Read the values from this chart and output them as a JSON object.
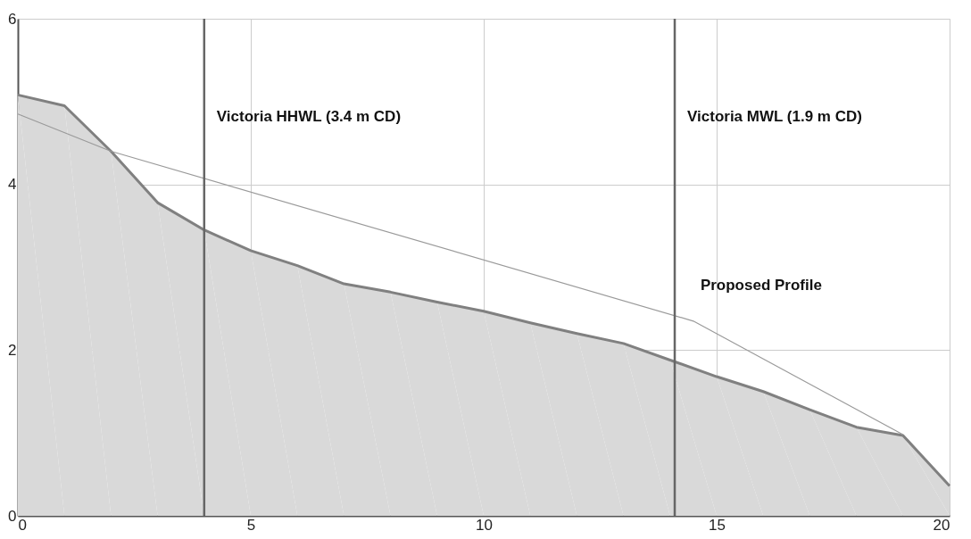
{
  "chart_data": {
    "type": "area",
    "x": [
      0,
      1,
      2,
      3,
      4,
      5,
      6,
      7,
      8,
      9,
      10,
      11,
      12,
      13,
      14,
      15,
      16,
      17,
      18,
      19,
      20
    ],
    "series": [
      {
        "type": "area",
        "color": "#d9d9d9",
        "values": [
          5.08,
          4.95,
          4.4,
          3.78,
          3.45,
          3.2,
          3.02,
          2.8,
          2.7,
          2.58,
          2.47,
          2.33,
          2.2,
          2.08,
          1.88,
          1.68,
          1.5,
          1.28,
          1.07,
          0.97,
          0.36
        ]
      },
      {
        "type": "line",
        "name": "Proposed Profile",
        "color": "#9a9a9a",
        "x": [
          0,
          2,
          14.5,
          19
        ],
        "values": [
          4.85,
          4.4,
          2.35,
          0.98
        ]
      }
    ],
    "xlim": [
      0,
      20
    ],
    "xticks": [
      0,
      5,
      10,
      15,
      20
    ],
    "ylim": [
      0,
      6
    ],
    "yticks": [
      0,
      2,
      4,
      6
    ],
    "grid": true,
    "ref_lines": [
      {
        "axis": "x",
        "value": 4,
        "label": "Victoria HHWL (3.4 m CD)",
        "color": "#666666"
      },
      {
        "axis": "x",
        "value": 14.1,
        "label": "Victoria MWL (1.9 m CD)",
        "color": "#666666"
      }
    ]
  }
}
